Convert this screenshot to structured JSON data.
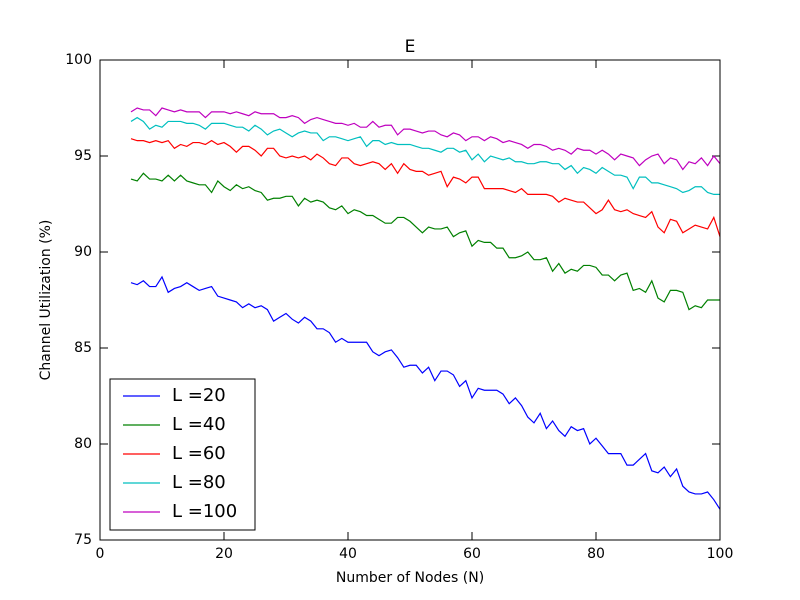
{
  "chart_data": {
    "type": "line",
    "title": "E",
    "xlabel": "Number of Nodes (N)",
    "ylabel": "Channel Utilization (%)",
    "xlim": [
      0,
      100
    ],
    "xticks": [
      0,
      20,
      40,
      60,
      80,
      100
    ],
    "ylim": [
      75,
      100
    ],
    "yticks": [
      75,
      80,
      85,
      90,
      95,
      100
    ],
    "grid": false,
    "legend": "lower left",
    "x": [
      5,
      6,
      7,
      8,
      9,
      10,
      11,
      12,
      13,
      14,
      15,
      16,
      17,
      18,
      19,
      20,
      21,
      22,
      23,
      24,
      25,
      26,
      27,
      28,
      29,
      30,
      31,
      32,
      33,
      34,
      35,
      36,
      37,
      38,
      39,
      40,
      41,
      42,
      43,
      44,
      45,
      46,
      47,
      48,
      49,
      50,
      51,
      52,
      53,
      54,
      55,
      56,
      57,
      58,
      59,
      60,
      61,
      62,
      63,
      64,
      65,
      66,
      67,
      68,
      69,
      70,
      71,
      72,
      73,
      74,
      75,
      76,
      77,
      78,
      79,
      80,
      81,
      82,
      83,
      84,
      85,
      86,
      87,
      88,
      89,
      90,
      91,
      92,
      93,
      94,
      95,
      96,
      97,
      98,
      99,
      100
    ],
    "series": [
      {
        "name": "L =20",
        "color": "#0000ff",
        "values": [
          88.4,
          88.3,
          88.5,
          88.2,
          88.2,
          88.7,
          87.9,
          88.1,
          88.2,
          88.4,
          88.2,
          88.0,
          88.1,
          88.2,
          87.7,
          87.6,
          87.5,
          87.4,
          87.1,
          87.3,
          87.1,
          87.2,
          87.0,
          86.4,
          86.6,
          86.8,
          86.5,
          86.3,
          86.6,
          86.4,
          86.0,
          86.0,
          85.8,
          85.3,
          85.5,
          85.3,
          85.3,
          85.3,
          85.3,
          84.8,
          84.6,
          84.8,
          84.9,
          84.5,
          84.0,
          84.1,
          84.1,
          83.7,
          84.0,
          83.3,
          83.8,
          83.8,
          83.6,
          83.0,
          83.3,
          82.4,
          82.9,
          82.8,
          82.8,
          82.8,
          82.6,
          82.1,
          82.4,
          82.0,
          81.4,
          81.1,
          81.6,
          80.8,
          81.2,
          80.7,
          80.4,
          80.9,
          80.7,
          80.8,
          80.0,
          80.3,
          79.9,
          79.5,
          79.5,
          79.5,
          78.9,
          78.9,
          79.2,
          79.5,
          78.6,
          78.5,
          78.8,
          78.3,
          78.7,
          77.8,
          77.5,
          77.4,
          77.4,
          77.5,
          77.1,
          76.6
        ]
      },
      {
        "name": "L =40",
        "color": "#008000",
        "values": [
          93.8,
          93.7,
          94.1,
          93.8,
          93.8,
          93.7,
          94.0,
          93.7,
          94.0,
          93.7,
          93.6,
          93.5,
          93.5,
          93.1,
          93.7,
          93.4,
          93.2,
          93.5,
          93.3,
          93.4,
          93.2,
          93.1,
          92.7,
          92.8,
          92.8,
          92.9,
          92.9,
          92.4,
          92.8,
          92.6,
          92.7,
          92.6,
          92.3,
          92.2,
          92.4,
          92.0,
          92.2,
          92.1,
          91.9,
          91.9,
          91.7,
          91.5,
          91.5,
          91.8,
          91.8,
          91.6,
          91.3,
          91.0,
          91.3,
          91.2,
          91.2,
          91.3,
          90.8,
          91.0,
          91.1,
          90.3,
          90.6,
          90.5,
          90.5,
          90.2,
          90.2,
          89.7,
          89.7,
          89.8,
          90.0,
          89.6,
          89.6,
          89.7,
          89.0,
          89.4,
          88.9,
          89.1,
          89.0,
          89.3,
          89.3,
          89.2,
          88.8,
          88.8,
          88.5,
          88.8,
          88.9,
          88.0,
          88.1,
          87.9,
          88.5,
          87.6,
          87.4,
          88.0,
          88.0,
          87.9,
          87.0,
          87.2,
          87.1,
          87.5,
          87.5,
          87.5
        ]
      },
      {
        "name": "L =60",
        "color": "#ff0000",
        "values": [
          95.9,
          95.8,
          95.8,
          95.7,
          95.8,
          95.7,
          95.8,
          95.4,
          95.6,
          95.5,
          95.7,
          95.7,
          95.6,
          95.8,
          95.6,
          95.7,
          95.5,
          95.2,
          95.5,
          95.5,
          95.3,
          95.0,
          95.4,
          95.4,
          95.0,
          94.9,
          95.0,
          94.9,
          95.0,
          94.8,
          95.1,
          94.9,
          94.6,
          94.5,
          94.9,
          94.9,
          94.6,
          94.5,
          94.6,
          94.7,
          94.6,
          94.3,
          94.6,
          94.1,
          94.6,
          94.3,
          94.2,
          94.2,
          94.0,
          94.1,
          94.2,
          93.4,
          93.9,
          93.8,
          93.6,
          93.9,
          93.9,
          93.3,
          93.3,
          93.3,
          93.3,
          93.2,
          93.1,
          93.3,
          93.0,
          93.0,
          93.0,
          93.0,
          92.9,
          92.6,
          92.8,
          92.7,
          92.6,
          92.6,
          92.3,
          92.0,
          92.2,
          92.7,
          92.2,
          92.1,
          92.2,
          92.0,
          91.9,
          91.8,
          92.1,
          91.3,
          91.0,
          91.7,
          91.6,
          91.0,
          91.2,
          91.4,
          91.3,
          91.2,
          91.8,
          90.8
        ]
      },
      {
        "name": "L =80",
        "color": "#00bfbf",
        "values": [
          96.8,
          97.0,
          96.8,
          96.4,
          96.6,
          96.5,
          96.8,
          96.8,
          96.8,
          96.7,
          96.7,
          96.6,
          96.4,
          96.7,
          96.7,
          96.7,
          96.6,
          96.5,
          96.5,
          96.3,
          96.6,
          96.4,
          96.1,
          96.3,
          96.4,
          96.2,
          96.0,
          96.2,
          96.3,
          96.2,
          96.2,
          95.8,
          96.0,
          96.0,
          95.9,
          95.8,
          95.9,
          96.0,
          95.5,
          95.8,
          95.8,
          95.6,
          95.7,
          95.6,
          95.6,
          95.6,
          95.5,
          95.4,
          95.4,
          95.3,
          95.2,
          95.4,
          95.4,
          95.2,
          95.3,
          94.8,
          95.1,
          94.7,
          95.0,
          94.9,
          94.8,
          94.9,
          94.7,
          94.7,
          94.6,
          94.6,
          94.7,
          94.7,
          94.6,
          94.6,
          94.3,
          94.5,
          94.1,
          94.4,
          94.3,
          94.1,
          94.4,
          94.2,
          94.0,
          94.0,
          93.9,
          93.3,
          93.9,
          93.9,
          93.6,
          93.6,
          93.5,
          93.4,
          93.3,
          93.1,
          93.2,
          93.4,
          93.4,
          93.1,
          93.0,
          93.0
        ]
      },
      {
        "name": "L =100",
        "color": "#bf00bf",
        "values": [
          97.3,
          97.5,
          97.4,
          97.4,
          97.1,
          97.5,
          97.4,
          97.3,
          97.4,
          97.3,
          97.3,
          97.3,
          97.0,
          97.3,
          97.3,
          97.3,
          97.2,
          97.3,
          97.2,
          97.1,
          97.3,
          97.2,
          97.2,
          97.2,
          97.0,
          97.0,
          97.1,
          97.0,
          96.7,
          96.9,
          97.0,
          96.9,
          96.8,
          96.7,
          96.7,
          96.6,
          96.7,
          96.5,
          96.5,
          96.8,
          96.5,
          96.6,
          96.6,
          96.1,
          96.4,
          96.4,
          96.3,
          96.2,
          96.3,
          96.3,
          96.1,
          96.0,
          96.2,
          96.1,
          95.8,
          96.0,
          96.0,
          95.8,
          96.0,
          95.9,
          95.7,
          95.8,
          95.7,
          95.6,
          95.4,
          95.6,
          95.6,
          95.5,
          95.3,
          95.4,
          95.3,
          95.1,
          95.4,
          95.3,
          95.3,
          95.1,
          95.3,
          95.1,
          94.8,
          95.1,
          95.0,
          94.9,
          94.5,
          94.8,
          95.0,
          95.1,
          94.6,
          94.9,
          94.8,
          94.3,
          94.7,
          94.6,
          94.9,
          94.5,
          95.0,
          94.6
        ]
      }
    ]
  }
}
